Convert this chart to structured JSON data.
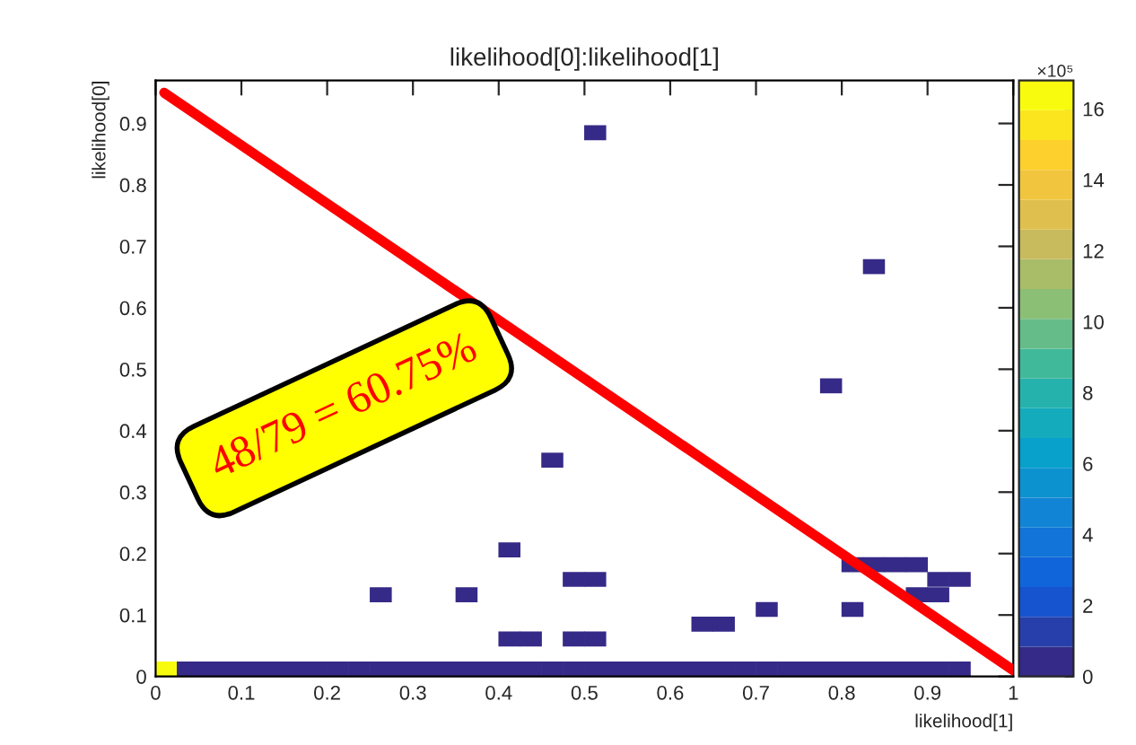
{
  "chart_data": {
    "type": "scatter",
    "title": "likelihood[0]:likelihood[1]",
    "xlabel": "likelihood[1]",
    "ylabel": "likelihood[0]",
    "clabel": "×10⁵",
    "xlim": [
      0,
      1
    ],
    "ylim": [
      0,
      0.97
    ],
    "xticks": [
      0,
      0.1,
      0.2,
      0.3,
      0.4,
      0.5,
      0.6,
      0.7,
      0.8,
      0.9,
      1
    ],
    "yticks": [
      0,
      0.1,
      0.2,
      0.3,
      0.4,
      0.5,
      0.6,
      0.7,
      0.8,
      0.9
    ],
    "clim": [
      0,
      16.8
    ],
    "cticks": [
      0,
      2,
      4,
      6,
      8,
      10,
      12,
      14,
      16
    ],
    "series": [
      {
        "marker": "square",
        "x": [
          0.5125,
          0.8375,
          0.7875,
          0.4625,
          0.4125,
          0.8125,
          0.8375,
          0.8625,
          0.8875,
          0.4875,
          0.5125,
          0.9125,
          0.9375,
          0.2625,
          0.3625,
          0.8875,
          0.9125,
          0.7125,
          0.8125,
          0.6375,
          0.6625,
          0.4125,
          0.4375,
          0.4875,
          0.5125,
          0.0125,
          0.0375,
          0.0625,
          0.0875,
          0.1125,
          0.1375,
          0.1625,
          0.1875,
          0.2125,
          0.2375,
          0.2625,
          0.2875,
          0.3125,
          0.3375,
          0.3625,
          0.3875,
          0.4125,
          0.4375,
          0.4625,
          0.4875,
          0.5125,
          0.5375,
          0.5625,
          0.5875,
          0.6125,
          0.6375,
          0.6625,
          0.6875,
          0.7125,
          0.7375,
          0.7625,
          0.7875,
          0.8125,
          0.8375,
          0.8625,
          0.8875,
          0.9125,
          0.9375
        ],
        "values": [
          0.885,
          0.667,
          0.473,
          0.352,
          0.206,
          0.182,
          0.182,
          0.182,
          0.182,
          0.158,
          0.158,
          0.158,
          0.158,
          0.133,
          0.133,
          0.133,
          0.133,
          0.109,
          0.109,
          0.085,
          0.085,
          0.061,
          0.061,
          0.061,
          0.061,
          0.012,
          0.012,
          0.012,
          0.012,
          0.012,
          0.012,
          0.012,
          0.012,
          0.012,
          0.012,
          0.012,
          0.012,
          0.012,
          0.012,
          0.012,
          0.012,
          0.012,
          0.012,
          0.012,
          0.012,
          0.012,
          0.012,
          0.012,
          0.012,
          0.012,
          0.012,
          0.012,
          0.012,
          0.012,
          0.012,
          0.012,
          0.012,
          0.012,
          0.012,
          0.012,
          0.012,
          0.012,
          0.012
        ],
        "colors": [
          "#352a87",
          "#352a87",
          "#352a87",
          "#352a87",
          "#352a87",
          "#352a87",
          "#352a87",
          "#352a87",
          "#352a87",
          "#352a87",
          "#352a87",
          "#352a87",
          "#352a87",
          "#352a87",
          "#352a87",
          "#352a87",
          "#352a87",
          "#352a87",
          "#352a87",
          "#352a87",
          "#352a87",
          "#352a87",
          "#352a87",
          "#352a87",
          "#352a87",
          "#f9fb0e",
          "#352a87",
          "#352a87",
          "#352a87",
          "#352a87",
          "#352a87",
          "#352a87",
          "#352a87",
          "#352a87",
          "#352a87",
          "#352a87",
          "#352a87",
          "#352a87",
          "#352a87",
          "#352a87",
          "#352a87",
          "#352a87",
          "#352a87",
          "#352a87",
          "#352a87",
          "#352a87",
          "#352a87",
          "#352a87",
          "#352a87",
          "#352a87",
          "#352a87",
          "#352a87",
          "#352a87",
          "#352a87",
          "#352a87",
          "#352a87",
          "#352a87",
          "#352a87",
          "#352a87",
          "#352a87",
          "#352a87",
          "#352a87",
          "#352a87"
        ]
      },
      {
        "type": "line",
        "color": "#ff0000",
        "x": [
          0.01,
          1.0
        ],
        "values": [
          0.95,
          0.01
        ]
      }
    ],
    "annotations": [
      "48/79 = 60.75%"
    ]
  }
}
